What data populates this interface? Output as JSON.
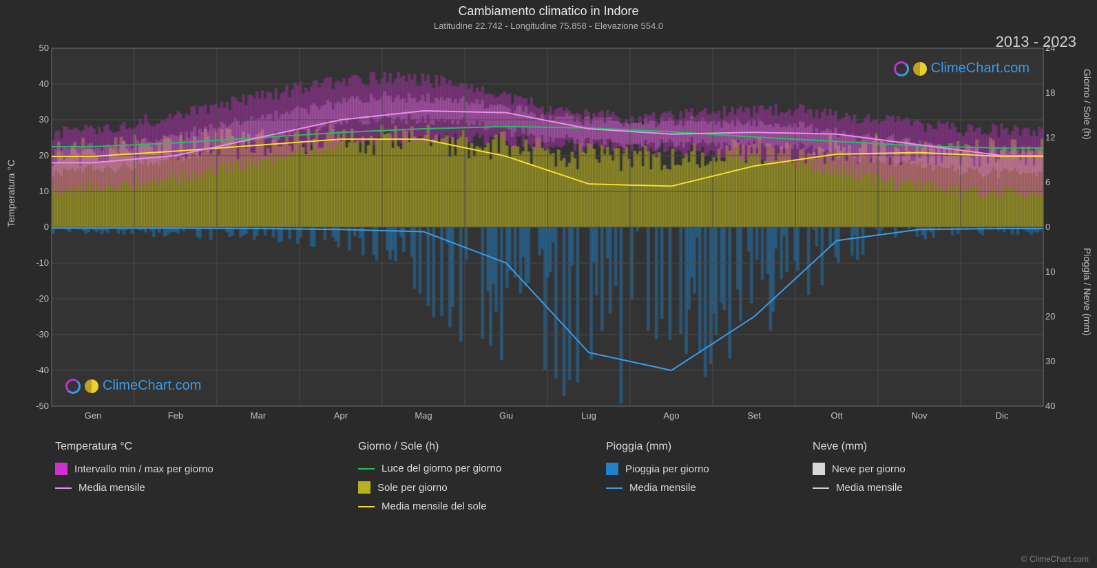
{
  "title": "Cambiamento climatico in Indore",
  "subtitle": "Latitudine 22.742 - Longitudine 75.858 - Elevazione 554.0",
  "year_range": "2013 - 2023",
  "watermark_text": "ClimeChart.com",
  "copyright": "© ClimeChart.com",
  "axes": {
    "left_label": "Temperatura °C",
    "right_top_label": "Giorno / Sole (h)",
    "right_bot_label": "Pioggia / Neve (mm)",
    "left_ticks": [
      50,
      40,
      30,
      20,
      10,
      0,
      -10,
      -20,
      -30,
      -40,
      -50
    ],
    "right_top_ticks": [
      24,
      18,
      12,
      6,
      0
    ],
    "right_bot_ticks": [
      0,
      10,
      20,
      30,
      40
    ],
    "x_labels": [
      "Gen",
      "Feb",
      "Mar",
      "Apr",
      "Mag",
      "Giu",
      "Lug",
      "Ago",
      "Set",
      "Ott",
      "Nov",
      "Dic"
    ]
  },
  "chart": {
    "ylim_left": [
      -50,
      50
    ],
    "ylim_right_top": [
      0,
      24
    ],
    "ylim_right_bot_mm": [
      0,
      40
    ],
    "background": "#333333",
    "grid_color": "#4a4a4a",
    "temp_band_color": "#d030d0",
    "temp_band_light": "#e890e8",
    "temp_mean_color": "#e890e8",
    "daylight_color": "#20c060",
    "sun_fill_color": "#b8b020",
    "sun_mean_color": "#f0e030",
    "rain_bar_color": "#2080c8",
    "rain_mean_color": "#3a9be8",
    "snow_bar_color": "#d8d8d8",
    "snow_mean_color": "#d0d0d0",
    "temp_min": [
      10,
      12,
      16,
      21,
      25,
      25,
      23,
      22,
      21,
      18,
      13,
      10
    ],
    "temp_max": [
      26,
      29,
      34,
      39,
      42,
      40,
      33,
      30,
      32,
      33,
      30,
      27
    ],
    "temp_mean": [
      18,
      20,
      25,
      30,
      32.5,
      32,
      27.5,
      26,
      26.5,
      26,
      23,
      20
    ],
    "daylight_h": [
      10.8,
      11.3,
      12,
      12.7,
      13.2,
      13.5,
      13.3,
      12.8,
      12.1,
      11.5,
      10.9,
      10.6
    ],
    "sun_mean_h": [
      9.5,
      10.2,
      11,
      11.8,
      11.8,
      9.5,
      5.8,
      5.5,
      8.2,
      9.8,
      10,
      9.5
    ],
    "sun_fill_top_h": [
      10,
      10.5,
      11.2,
      12,
      12,
      11.5,
      10,
      9,
      10,
      10.5,
      10.5,
      10
    ],
    "rain_mean_mm": [
      0.2,
      0.2,
      0.3,
      0.5,
      1,
      8,
      28,
      32,
      20,
      3,
      0.5,
      0.3
    ],
    "rain_noise_max_mm": [
      2,
      2,
      3,
      4,
      8,
      30,
      40,
      40,
      35,
      18,
      4,
      2
    ]
  },
  "legend": {
    "sections": [
      {
        "title": "Temperatura °C",
        "items": [
          {
            "kind": "swatch",
            "color": "#d030d0",
            "label": "Intervallo min / max per giorno"
          },
          {
            "kind": "line",
            "color": "#e890e8",
            "label": "Media mensile"
          }
        ]
      },
      {
        "title": "Giorno / Sole (h)",
        "items": [
          {
            "kind": "line",
            "color": "#20c060",
            "label": "Luce del giorno per giorno"
          },
          {
            "kind": "swatch",
            "color": "#b8b020",
            "label": "Sole per giorno"
          },
          {
            "kind": "line",
            "color": "#f0e030",
            "label": "Media mensile del sole"
          }
        ]
      },
      {
        "title": "Pioggia (mm)",
        "items": [
          {
            "kind": "swatch",
            "color": "#2080c8",
            "label": "Pioggia per giorno"
          },
          {
            "kind": "line",
            "color": "#3a9be8",
            "label": "Media mensile"
          }
        ]
      },
      {
        "title": "Neve (mm)",
        "items": [
          {
            "kind": "swatch",
            "color": "#d8d8d8",
            "label": "Neve per giorno"
          },
          {
            "kind": "line",
            "color": "#d0d0d0",
            "label": "Media mensile"
          }
        ]
      }
    ]
  }
}
